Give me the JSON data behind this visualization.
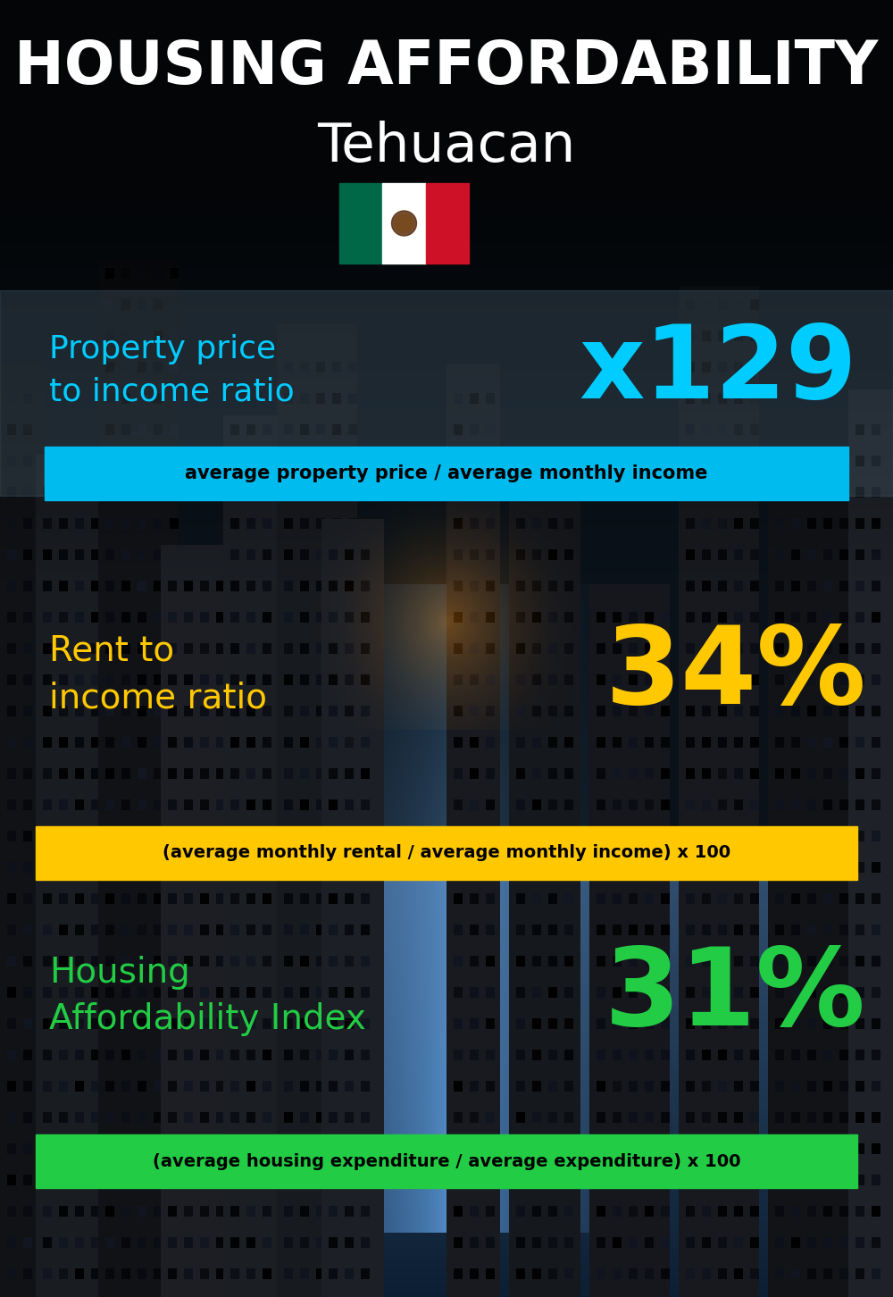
{
  "title_line1": "HOUSING AFFORDABILITY",
  "title_line2": "Tehuacan",
  "bg_color": "#0a1520",
  "section1_label": "Property price\nto income ratio",
  "section1_value": "x129",
  "section1_label_color": "#00ccff",
  "section1_value_color": "#00ccff",
  "section1_banner": "average property price / average monthly income",
  "section1_banner_bg": "#00bbee",
  "section1_overlay": "#4a6070",
  "section1_overlay_alpha": 0.35,
  "section2_label": "Rent to\nincome ratio",
  "section2_value": "34%",
  "section2_label_color": "#ffc800",
  "section2_value_color": "#ffc800",
  "section2_banner": "(average monthly rental / average monthly income) x 100",
  "section2_banner_bg": "#ffc800",
  "section3_label": "Housing\nAffordability Index",
  "section3_value": "31%",
  "section3_label_color": "#22cc44",
  "section3_value_color": "#22cc44",
  "section3_banner": "(average housing expenditure / average expenditure) x 100",
  "section3_banner_bg": "#22cc44"
}
